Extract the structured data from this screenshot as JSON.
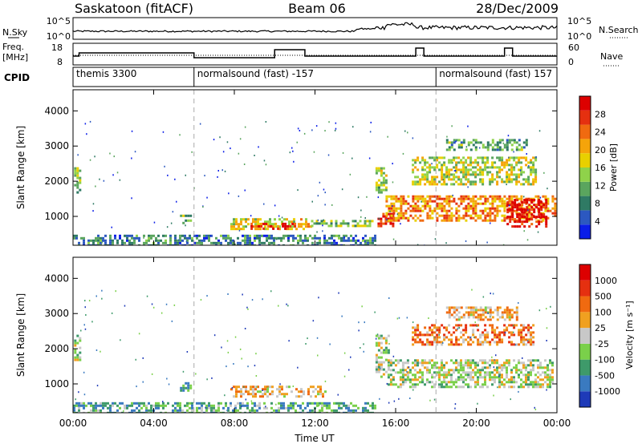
{
  "header": {
    "station": "Saskatoon (fitACF)",
    "beam": "Beam 06",
    "date": "28/Dec/2009"
  },
  "strips": {
    "nsky_label": "N.Sky",
    "nsky_ticks": [
      "10^5",
      "10^0"
    ],
    "nsearch_label": "N.Search",
    "nsearch_ticks": [
      "10^5",
      "10^0"
    ],
    "freq_label": "Freq.",
    "freq_unit": "[MHz]",
    "freq_ticks": [
      "18",
      "8"
    ],
    "nave_label": "Nave",
    "nave_ticks": [
      "60",
      "0"
    ],
    "cpid_label": "CPID"
  },
  "cpid_segments": [
    {
      "label": "themis 3300",
      "start_h": 0,
      "end_h": 6
    },
    {
      "label": "normalsound (fast) -157",
      "start_h": 6,
      "end_h": 18
    },
    {
      "label": "normalsound (fast) 157",
      "start_h": 18,
      "end_h": 24
    }
  ],
  "chart_data": [
    {
      "type": "heatmap",
      "panel": "power",
      "xlabel": "Time UT",
      "ylabel": "Slant Range [km]",
      "x_ticks": [
        "00:00",
        "04:00",
        "08:00",
        "12:00",
        "16:00",
        "20:00",
        "00:00"
      ],
      "xlim_h": [
        0,
        24
      ],
      "y_ticks": [
        1000,
        2000,
        3000,
        4000
      ],
      "ylim": [
        180,
        4600
      ],
      "colorbar_label": "Power [dB]",
      "colorbar_ticks": [
        "4",
        "8",
        "12",
        "16",
        "20",
        "24",
        "28"
      ],
      "colorbar_colors": [
        "#0a1de8",
        "#2c58c0",
        "#2f7a64",
        "#5aa55e",
        "#8fd24a",
        "#e8d000",
        "#f5a40a",
        "#f06a10",
        "#e53010",
        "#dd0000"
      ],
      "regions": [
        {
          "t0": 0.05,
          "t1": 0.4,
          "r0": 1700,
          "r1": 2400,
          "level": 0.4
        },
        {
          "t0": 0,
          "t1": 15,
          "r0": 200,
          "r1": 480,
          "level": 0.25
        },
        {
          "t0": 5.3,
          "t1": 5.8,
          "r0": 800,
          "r1": 1050,
          "level": 0.35
        },
        {
          "t0": 7.8,
          "t1": 11.8,
          "r0": 650,
          "r1": 950,
          "level": 0.55
        },
        {
          "t0": 8.8,
          "t1": 11.0,
          "r0": 680,
          "r1": 820,
          "level": 0.85
        },
        {
          "t0": 11.8,
          "t1": 14.8,
          "r0": 700,
          "r1": 900,
          "level": 0.4
        },
        {
          "t0": 15.0,
          "t1": 15.5,
          "r0": 1700,
          "r1": 2400,
          "level": 0.45
        },
        {
          "t0": 15.1,
          "t1": 15.9,
          "r0": 750,
          "r1": 1100,
          "level": 0.9
        },
        {
          "t0": 15.5,
          "t1": 23.9,
          "r0": 900,
          "r1": 1600,
          "level": 0.7
        },
        {
          "t0": 16.8,
          "t1": 23.0,
          "r0": 1900,
          "r1": 2700,
          "level": 0.5
        },
        {
          "t0": 18.5,
          "t1": 22.5,
          "r0": 2900,
          "r1": 3200,
          "level": 0.35
        },
        {
          "t0": 21.5,
          "t1": 23.5,
          "r0": 700,
          "r1": 1500,
          "level": 0.95
        }
      ]
    },
    {
      "type": "heatmap",
      "panel": "velocity",
      "xlabel": "Time UT",
      "ylabel": "Slant Range [km]",
      "x_ticks": [
        "00:00",
        "04:00",
        "08:00",
        "12:00",
        "16:00",
        "20:00",
        "00:00"
      ],
      "xlim_h": [
        0,
        24
      ],
      "y_ticks": [
        1000,
        2000,
        3000,
        4000
      ],
      "ylim": [
        180,
        4600
      ],
      "colorbar_label": "Velocity [m s⁻¹]",
      "colorbar_ticks": [
        "1000",
        "500",
        "100",
        "25",
        "-25",
        "-100",
        "-500",
        "-1000"
      ],
      "colorbar_colors": [
        "#1e3ab8",
        "#3a7ac0",
        "#3e9a6a",
        "#7ad04a",
        "#c8c8c8",
        "#f0a020",
        "#f06a10",
        "#e53010",
        "#dd0000"
      ],
      "regions": [
        {
          "t0": 0.05,
          "t1": 0.4,
          "r0": 1700,
          "r1": 2400,
          "level": 0.45
        },
        {
          "t0": 0,
          "t1": 15,
          "r0": 200,
          "r1": 480,
          "level": 0.3
        },
        {
          "t0": 5.3,
          "t1": 5.8,
          "r0": 800,
          "r1": 1050,
          "level": 0.3
        },
        {
          "t0": 7.8,
          "t1": 12.5,
          "r0": 650,
          "r1": 950,
          "level": 0.6
        },
        {
          "t0": 15.0,
          "t1": 15.6,
          "r0": 1200,
          "r1": 2400,
          "level": 0.45
        },
        {
          "t0": 15.6,
          "t1": 23.8,
          "r0": 900,
          "r1": 1700,
          "level": 0.45
        },
        {
          "t0": 16.8,
          "t1": 22.8,
          "r0": 2100,
          "r1": 2700,
          "level": 0.7
        },
        {
          "t0": 18.5,
          "t1": 22.0,
          "r0": 2800,
          "r1": 3200,
          "level": 0.6
        }
      ]
    }
  ]
}
